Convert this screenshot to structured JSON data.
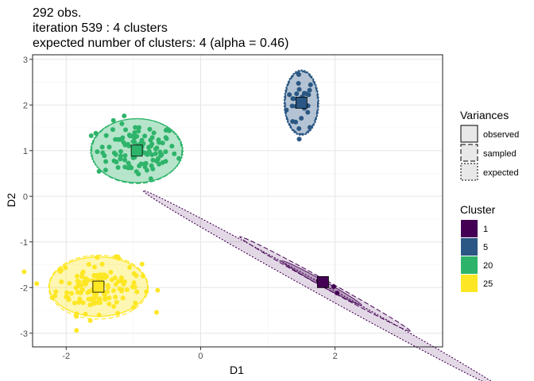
{
  "chart_data": {
    "type": "scatter",
    "title_lines": [
      "292 obs.",
      "iteration 539 : 4 clusters",
      "expected number of clusters: 4 (alpha = 0.46)"
    ],
    "xlabel": "D1",
    "ylabel": "D2",
    "xlim": [
      -2.5,
      3.6
    ],
    "ylim": [
      -3.3,
      3.1
    ],
    "xticks": [
      -2,
      0,
      2
    ],
    "xtick_labels": [
      "-2",
      "0",
      "2"
    ],
    "yticks": [
      -3,
      -2,
      -1,
      0,
      1,
      2,
      3
    ],
    "ytick_labels": [
      "-3",
      "-2",
      "-1",
      "0",
      "1",
      "2",
      "3"
    ],
    "grid": true,
    "legend_placement": "right",
    "variances_legend": {
      "title": "Variances",
      "items": [
        "observed",
        "sampled",
        "expected"
      ]
    },
    "cluster_legend": {
      "title": "Cluster",
      "items": [
        "1",
        "5",
        "20",
        "25"
      ]
    },
    "clusters": [
      {
        "name": "1",
        "color": "#440154",
        "n_points": 4,
        "center": [
          1.82,
          -1.88
        ],
        "points": [
          [
            1.85,
            -1.95
          ],
          [
            1.75,
            -1.85
          ],
          [
            1.98,
            -1.98
          ],
          [
            2.03,
            -2.12
          ]
        ],
        "ellipse_expected": {
          "cx": 1.82,
          "cy": -2.06,
          "rx": 3.06,
          "ry": 0.115,
          "angle_deg": -29
        },
        "ellipse_observed": {
          "cx": 1.8,
          "cy": -1.9,
          "rx": 0.68,
          "ry": 0.06,
          "angle_deg": -29
        },
        "ellipse_sampled": {
          "cx": 1.85,
          "cy": -1.92,
          "rx": 1.45,
          "ry": 0.08,
          "angle_deg": -29
        }
      },
      {
        "name": "5",
        "color": "#2a5783",
        "n_points": 30,
        "center": [
          1.5,
          2.05
        ],
        "ellipse_observed": {
          "cx": 1.5,
          "cy": 2.05,
          "rx": 0.25,
          "ry": 0.7
        },
        "ellipse_sampled": {
          "cx": 1.5,
          "cy": 2.05,
          "rx": 0.24,
          "ry": 0.68
        },
        "ellipse_expected": {
          "cx": 1.5,
          "cy": 2.05,
          "rx": 0.26,
          "ry": 0.72
        }
      },
      {
        "name": "20",
        "color": "#2eb46a",
        "n_points": 112,
        "center": [
          -0.95,
          1.0
        ],
        "ellipse_observed": {
          "cx": -0.95,
          "cy": 1.0,
          "rx": 0.68,
          "ry": 0.7
        },
        "ellipse_sampled": {
          "cx": -0.95,
          "cy": 0.99,
          "rx": 0.67,
          "ry": 0.71
        },
        "ellipse_expected": {
          "cx": -0.95,
          "cy": 1.0,
          "rx": 0.69,
          "ry": 0.7
        }
      },
      {
        "name": "25",
        "color": "#fde725",
        "n_points": 146,
        "center": [
          -1.52,
          -1.98
        ],
        "ellipse_observed": {
          "cx": -1.52,
          "cy": -1.98,
          "rx": 0.73,
          "ry": 0.65
        },
        "ellipse_sampled": {
          "cx": -1.52,
          "cy": -1.99,
          "rx": 0.74,
          "ry": 0.7
        },
        "ellipse_expected": {
          "cx": -1.52,
          "cy": -1.98,
          "rx": 0.73,
          "ry": 0.66
        }
      }
    ]
  }
}
